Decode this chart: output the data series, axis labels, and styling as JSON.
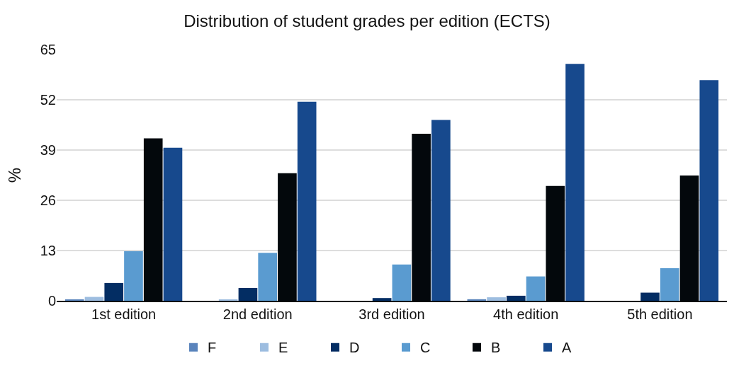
{
  "chart_data": {
    "type": "bar",
    "title": "Distribution of student grades per edition (ECTS)",
    "ylabel": "%",
    "categories": [
      "1st edition",
      "2nd edition",
      "3rd edition",
      "4th edition",
      "5th edition"
    ],
    "series": [
      {
        "name": "F",
        "color": "#5a84bc",
        "values": [
          0.3,
          0,
          0,
          0.4,
          0
        ]
      },
      {
        "name": "E",
        "color": "#9dbde0",
        "values": [
          1.0,
          0.3,
          0,
          0.9,
          0
        ]
      },
      {
        "name": "D",
        "color": "#032d63",
        "values": [
          4.6,
          3.3,
          0.7,
          1.3,
          2.1
        ]
      },
      {
        "name": "C",
        "color": "#5a9bd0",
        "values": [
          12.8,
          12.4,
          9.4,
          6.3,
          8.4
        ]
      },
      {
        "name": "B",
        "color": "#03080c",
        "values": [
          42.0,
          33.0,
          43.2,
          29.7,
          32.4
        ]
      },
      {
        "name": "A",
        "color": "#17498d",
        "values": [
          39.6,
          51.5,
          46.8,
          61.3,
          57.1
        ]
      }
    ],
    "ylim": [
      0,
      65
    ],
    "yticks": [
      0,
      13,
      26,
      39,
      52,
      65
    ],
    "grid": "y",
    "legend": "bottom"
  }
}
